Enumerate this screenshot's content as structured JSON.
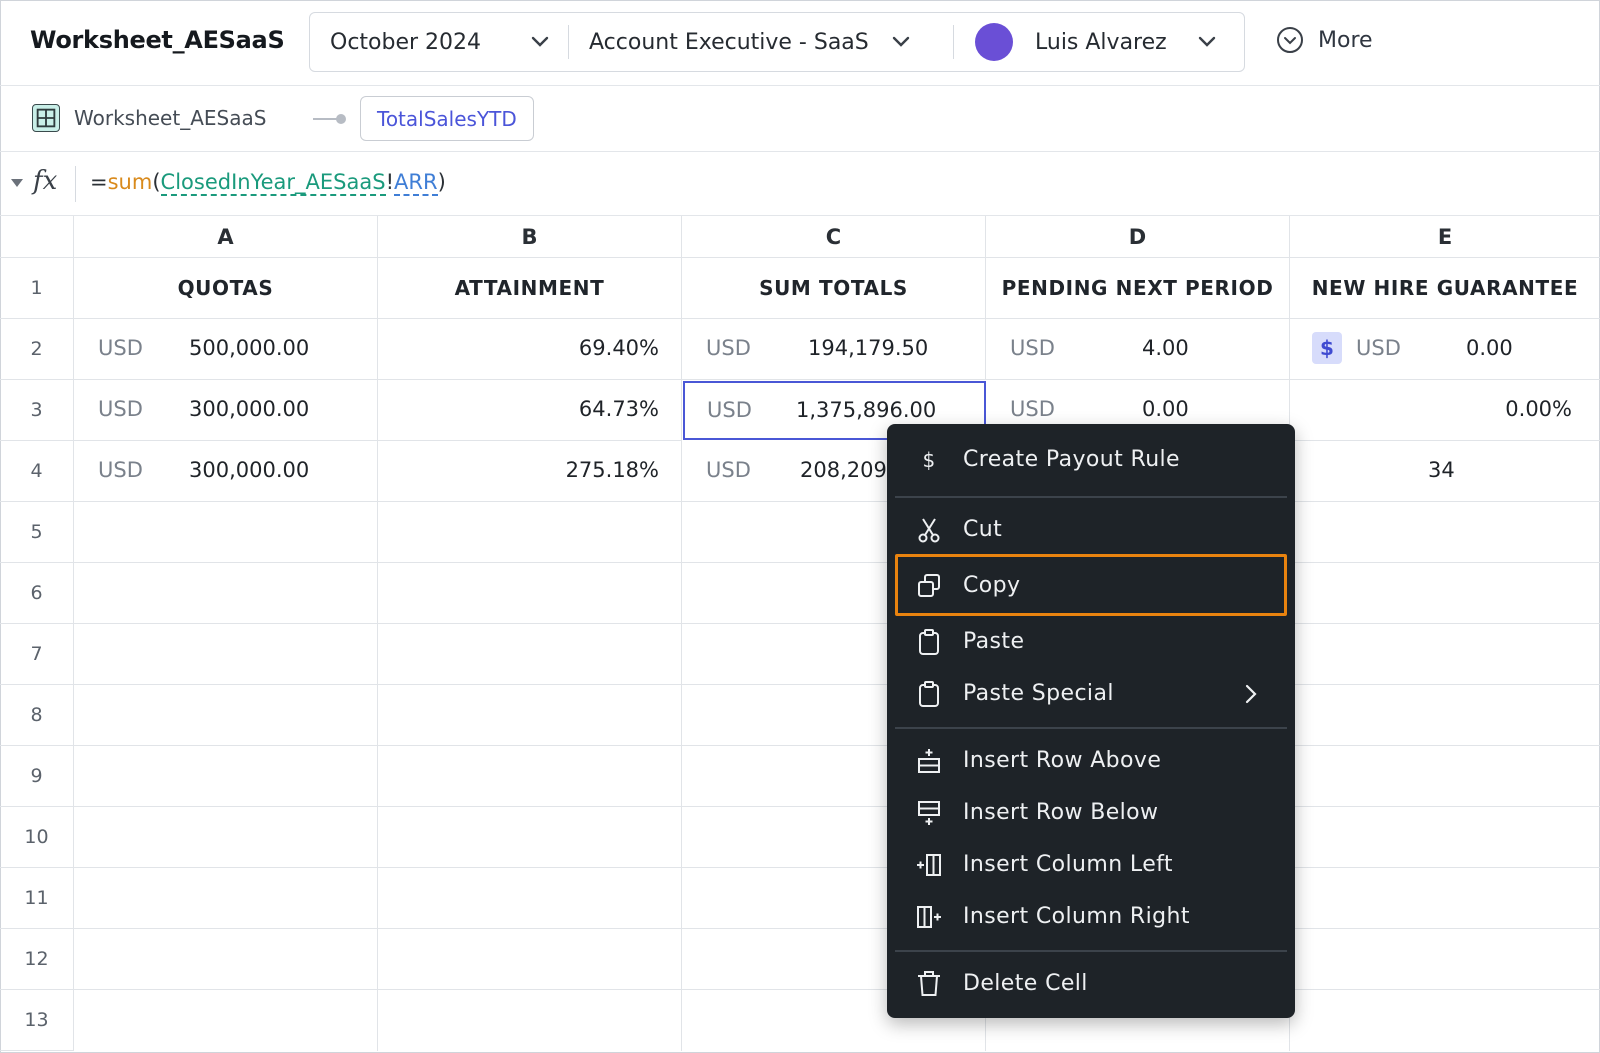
{
  "topbar": {
    "worksheet_title": "Worksheet_AESaaS",
    "period": "October 2024",
    "plan": "Account Executive - SaaS",
    "user": "Luis Alvarez",
    "more_label": "More"
  },
  "breadcrumb": {
    "worksheet": "Worksheet_AESaaS",
    "active_column": "TotalSalesYTD"
  },
  "formula": {
    "eq": "=",
    "fn": "sum",
    "open": "(",
    "table": "ClosedInYear_AESaaS",
    "bang": "!",
    "column": "ARR",
    "close": ")"
  },
  "grid": {
    "columns": [
      "A",
      "B",
      "C",
      "D",
      "E"
    ],
    "rows": [
      "1",
      "2",
      "3",
      "4",
      "5",
      "6",
      "7",
      "8",
      "9",
      "10",
      "11",
      "12",
      "13"
    ],
    "headers": [
      "QUOTAS",
      "ATTAINMENT",
      "SUM TOTALS",
      "PENDING NEXT PERIOD",
      "NEW HIRE GUARANTEE"
    ],
    "currency": "USD",
    "row2": {
      "a": "500,000.00",
      "b": "69.40%",
      "c": "194,179.50",
      "d": "4.00",
      "e": "0.00"
    },
    "row3": {
      "a": "300,000.00",
      "b": "64.73%",
      "c": "1,375,896.00",
      "d": "0.00",
      "e": "0.00%"
    },
    "row4": {
      "a": "300,000.00",
      "b": "275.18%",
      "c": "208,209",
      "e": "34"
    }
  },
  "context_menu": {
    "items": [
      {
        "label": "Create Payout Rule",
        "icon": "dollar-icon"
      },
      {
        "label": "Cut",
        "icon": "scissors-icon"
      },
      {
        "label": "Copy",
        "icon": "copy-icon"
      },
      {
        "label": "Paste",
        "icon": "clipboard-icon"
      },
      {
        "label": "Paste Special",
        "icon": "clipboard-icon"
      },
      {
        "label": "Insert Row Above",
        "icon": "insert-row-above-icon"
      },
      {
        "label": "Insert Row Below",
        "icon": "insert-row-below-icon"
      },
      {
        "label": "Insert Column Left",
        "icon": "insert-column-left-icon"
      },
      {
        "label": "Insert Column Right",
        "icon": "insert-column-right-icon"
      },
      {
        "label": "Delete Cell",
        "icon": "trash-icon"
      }
    ],
    "highlight_color": "#e9830f"
  },
  "colors": {
    "accent": "#4a57d6",
    "avatar": "#6a4fd6",
    "menu_bg": "#1e2328"
  }
}
